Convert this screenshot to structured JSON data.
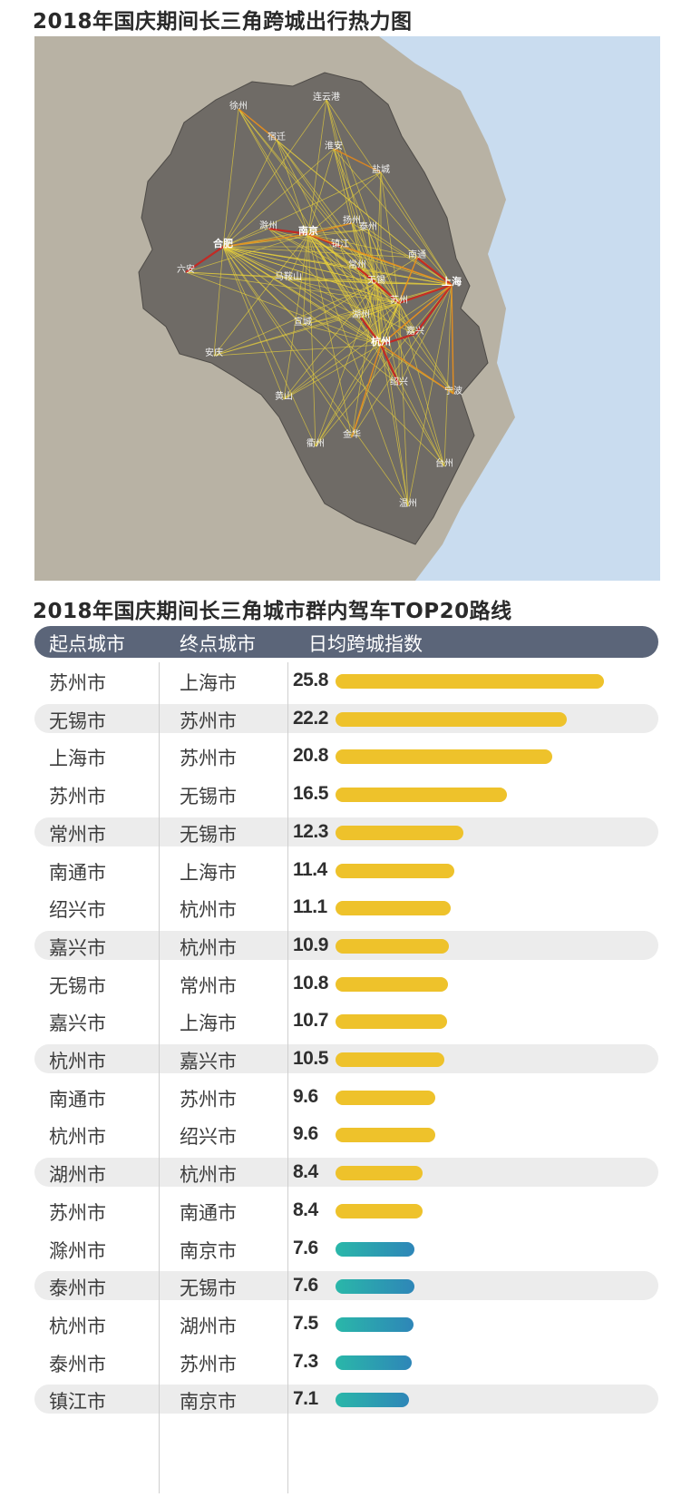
{
  "map": {
    "title": "2018年国庆期间长三角跨城出行热力图",
    "cities": [
      {
        "id": "xuzhou",
        "name": "徐州",
        "major": false
      },
      {
        "id": "lianyungang",
        "name": "连云港",
        "major": false
      },
      {
        "id": "suqian",
        "name": "宿迁",
        "major": false
      },
      {
        "id": "huaian",
        "name": "淮安",
        "major": false
      },
      {
        "id": "yancheng",
        "name": "盐城",
        "major": false
      },
      {
        "id": "chuzhou",
        "name": "滁州",
        "major": false
      },
      {
        "id": "nanjing",
        "name": "南京",
        "major": true
      },
      {
        "id": "yangzhou",
        "name": "扬州",
        "major": false
      },
      {
        "id": "taizhou_js",
        "name": "泰州",
        "major": false
      },
      {
        "id": "hefei",
        "name": "合肥",
        "major": true
      },
      {
        "id": "zhenjiang",
        "name": "镇江",
        "major": false
      },
      {
        "id": "nantong",
        "name": "南通",
        "major": false
      },
      {
        "id": "changzhou",
        "name": "常州",
        "major": false
      },
      {
        "id": "luan",
        "name": "六安",
        "major": false
      },
      {
        "id": "maanshan",
        "name": "马鞍山",
        "major": false
      },
      {
        "id": "wuxi",
        "name": "无锡",
        "major": false
      },
      {
        "id": "shanghai",
        "name": "上海",
        "major": true
      },
      {
        "id": "suzhou",
        "name": "苏州",
        "major": false
      },
      {
        "id": "huzhou",
        "name": "湖州",
        "major": false
      },
      {
        "id": "xuancheng",
        "name": "宣城",
        "major": false
      },
      {
        "id": "jiaxing",
        "name": "嘉兴",
        "major": false
      },
      {
        "id": "hangzhou",
        "name": "杭州",
        "major": true
      },
      {
        "id": "anqing",
        "name": "安庆",
        "major": false
      },
      {
        "id": "shaoxing",
        "name": "绍兴",
        "major": false
      },
      {
        "id": "ningbo",
        "name": "宁波",
        "major": false
      },
      {
        "id": "huangshan",
        "name": "黄山",
        "major": false
      },
      {
        "id": "jinhua",
        "name": "金华",
        "major": false
      },
      {
        "id": "quzhou",
        "name": "衢州",
        "major": false
      },
      {
        "id": "taizhou_zj",
        "name": "台州",
        "major": false
      },
      {
        "id": "wenzhou",
        "name": "温州",
        "major": false
      }
    ],
    "colors": {
      "sea": "#c9dcef",
      "land_outside": "#b8b2a4",
      "region": "#6f6b66",
      "flow_strong": "#c81e1e",
      "flow_mid": "#e8891a",
      "flow_weak": "#e9d23a"
    }
  },
  "table": {
    "title": "2018年国庆期间长三角城市群内驾车TOP20路线",
    "headers": {
      "origin": "起点城市",
      "destination": "终点城市",
      "index": "日均跨城指数"
    }
  },
  "chart_data": {
    "type": "bar",
    "title": "2018年国庆期间长三角城市群内驾车TOP20路线",
    "orientation": "horizontal",
    "xlim": [
      0,
      25.8
    ],
    "columns": [
      "起点城市",
      "终点城市",
      "日均跨城指数"
    ],
    "rows": [
      {
        "origin": "苏州市",
        "destination": "上海市",
        "value": 25.8
      },
      {
        "origin": "无锡市",
        "destination": "苏州市",
        "value": 22.2
      },
      {
        "origin": "上海市",
        "destination": "苏州市",
        "value": 20.8
      },
      {
        "origin": "苏州市",
        "destination": "无锡市",
        "value": 16.5
      },
      {
        "origin": "常州市",
        "destination": "无锡市",
        "value": 12.3
      },
      {
        "origin": "南通市",
        "destination": "上海市",
        "value": 11.4
      },
      {
        "origin": "绍兴市",
        "destination": "杭州市",
        "value": 11.1
      },
      {
        "origin": "嘉兴市",
        "destination": "杭州市",
        "value": 10.9
      },
      {
        "origin": "无锡市",
        "destination": "常州市",
        "value": 10.8
      },
      {
        "origin": "嘉兴市",
        "destination": "上海市",
        "value": 10.7
      },
      {
        "origin": "杭州市",
        "destination": "嘉兴市",
        "value": 10.5
      },
      {
        "origin": "南通市",
        "destination": "苏州市",
        "value": 9.6
      },
      {
        "origin": "杭州市",
        "destination": "绍兴市",
        "value": 9.6
      },
      {
        "origin": "湖州市",
        "destination": "杭州市",
        "value": 8.4
      },
      {
        "origin": "苏州市",
        "destination": "南通市",
        "value": 8.4
      },
      {
        "origin": "滁州市",
        "destination": "南京市",
        "value": 7.6
      },
      {
        "origin": "泰州市",
        "destination": "无锡市",
        "value": 7.6
      },
      {
        "origin": "杭州市",
        "destination": "湖州市",
        "value": 7.5
      },
      {
        "origin": "泰州市",
        "destination": "苏州市",
        "value": 7.3
      },
      {
        "origin": "镇江市",
        "destination": "南京市",
        "value": 7.1
      }
    ],
    "bar_colors": {
      "gold": "#eec22b",
      "teal_start": "#2ab7a9",
      "teal_end": "#2e86b8"
    },
    "shaded_rows": [
      1,
      4,
      7,
      10,
      13,
      16,
      19
    ]
  }
}
